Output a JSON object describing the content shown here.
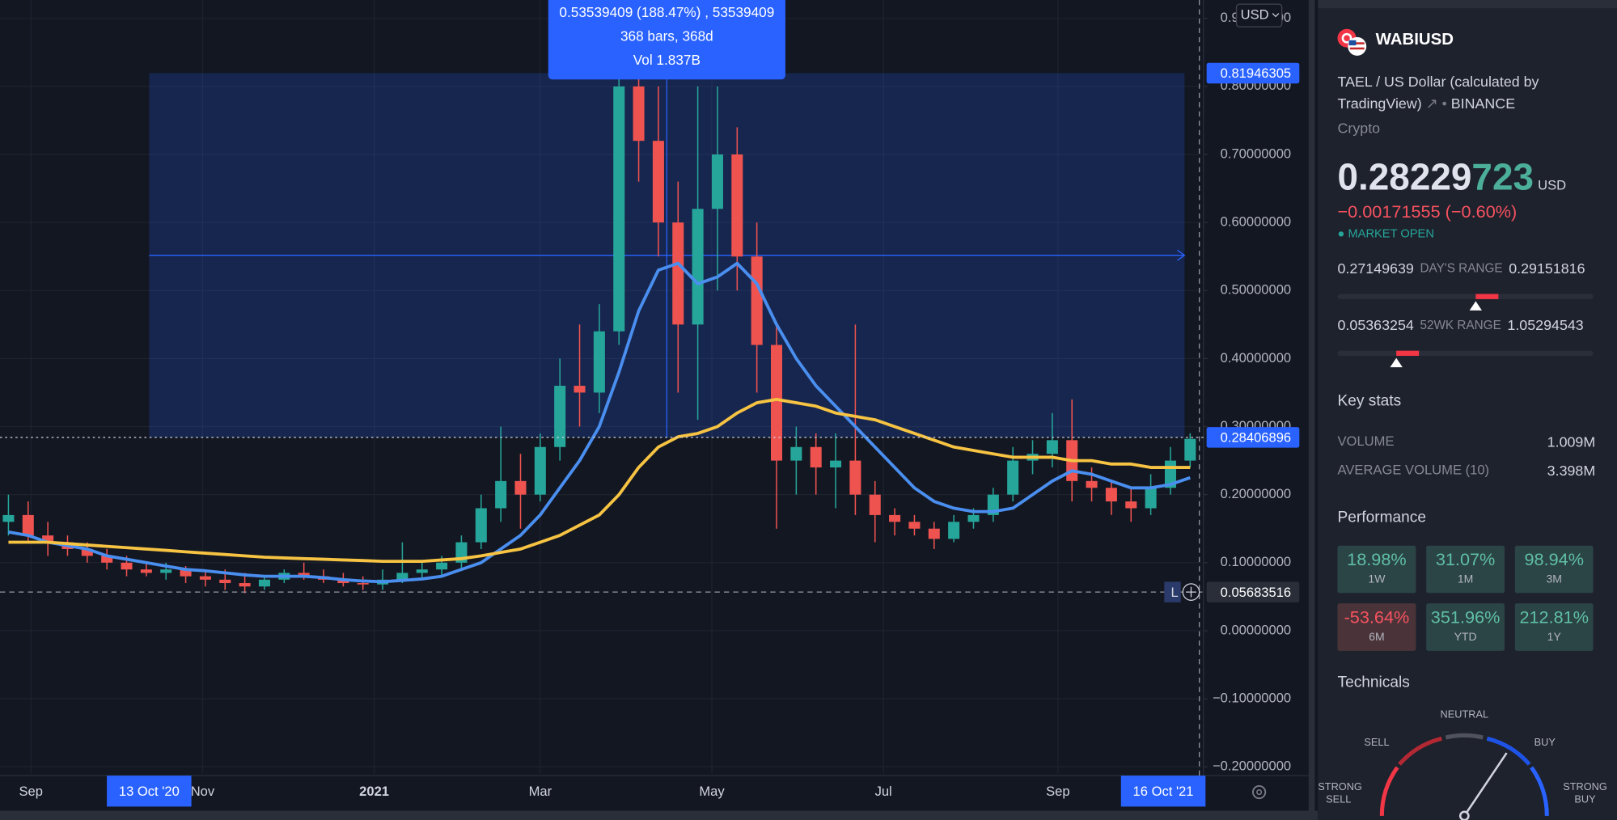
{
  "chart_data": {
    "type": "candlestick",
    "x": [
      "2020-08-24",
      "2020-08-31",
      "2020-09-07",
      "2020-09-14",
      "2020-09-21",
      "2020-09-28",
      "2020-10-05",
      "2020-10-12",
      "2020-10-19",
      "2020-10-26",
      "2020-11-02",
      "2020-11-09",
      "2020-11-16",
      "2020-11-23",
      "2020-11-30",
      "2020-12-07",
      "2020-12-14",
      "2020-12-21",
      "2020-12-28",
      "2021-01-04",
      "2021-01-11",
      "2021-01-18",
      "2021-01-25",
      "2021-02-01",
      "2021-02-08",
      "2021-02-15",
      "2021-02-22",
      "2021-03-01",
      "2021-03-08",
      "2021-03-15",
      "2021-03-22",
      "2021-03-29",
      "2021-04-05",
      "2021-04-12",
      "2021-04-19",
      "2021-04-26",
      "2021-05-03",
      "2021-05-10",
      "2021-05-17",
      "2021-05-24",
      "2021-05-31",
      "2021-06-07",
      "2021-06-14",
      "2021-06-21",
      "2021-06-28",
      "2021-07-05",
      "2021-07-12",
      "2021-07-19",
      "2021-07-26",
      "2021-08-02",
      "2021-08-09",
      "2021-08-16",
      "2021-08-23",
      "2021-08-30",
      "2021-09-06",
      "2021-09-13",
      "2021-09-20",
      "2021-09-27",
      "2021-10-04",
      "2021-10-11",
      "2021-10-18"
    ],
    "open": [
      0.16,
      0.17,
      0.14,
      0.13,
      0.12,
      0.11,
      0.1,
      0.09,
      0.085,
      0.09,
      0.08,
      0.075,
      0.07,
      0.065,
      0.075,
      0.085,
      0.08,
      0.075,
      0.07,
      0.068,
      0.075,
      0.085,
      0.09,
      0.1,
      0.13,
      0.18,
      0.22,
      0.2,
      0.27,
      0.36,
      0.35,
      0.44,
      0.8,
      0.72,
      0.6,
      0.45,
      0.62,
      0.7,
      0.55,
      0.42,
      0.25,
      0.27,
      0.24,
      0.25,
      0.2,
      0.17,
      0.16,
      0.15,
      0.135,
      0.16,
      0.17,
      0.2,
      0.25,
      0.26,
      0.28,
      0.22,
      0.21,
      0.19,
      0.18,
      0.21,
      0.25
    ],
    "high": [
      0.2,
      0.19,
      0.16,
      0.14,
      0.13,
      0.12,
      0.11,
      0.1,
      0.1,
      0.095,
      0.09,
      0.09,
      0.085,
      0.08,
      0.09,
      0.1,
      0.09,
      0.085,
      0.08,
      0.09,
      0.13,
      0.1,
      0.11,
      0.14,
      0.2,
      0.3,
      0.26,
      0.29,
      0.4,
      0.45,
      0.48,
      0.92,
      0.92,
      0.8,
      0.66,
      0.8,
      0.8,
      0.74,
      0.6,
      0.45,
      0.3,
      0.29,
      0.29,
      0.45,
      0.22,
      0.18,
      0.17,
      0.16,
      0.17,
      0.18,
      0.21,
      0.27,
      0.28,
      0.32,
      0.34,
      0.24,
      0.22,
      0.21,
      0.23,
      0.27,
      0.29
    ],
    "low": [
      0.14,
      0.13,
      0.11,
      0.11,
      0.1,
      0.09,
      0.08,
      0.08,
      0.075,
      0.07,
      0.065,
      0.06,
      0.055,
      0.06,
      0.07,
      0.075,
      0.07,
      0.065,
      0.06,
      0.06,
      0.07,
      0.075,
      0.08,
      0.09,
      0.12,
      0.16,
      0.15,
      0.19,
      0.25,
      0.3,
      0.32,
      0.42,
      0.66,
      0.55,
      0.35,
      0.31,
      0.5,
      0.5,
      0.35,
      0.15,
      0.2,
      0.2,
      0.18,
      0.17,
      0.13,
      0.14,
      0.14,
      0.12,
      0.13,
      0.15,
      0.16,
      0.19,
      0.23,
      0.24,
      0.19,
      0.19,
      0.17,
      0.16,
      0.17,
      0.2,
      0.24
    ],
    "close": [
      0.17,
      0.14,
      0.13,
      0.12,
      0.11,
      0.1,
      0.09,
      0.085,
      0.09,
      0.08,
      0.075,
      0.07,
      0.065,
      0.075,
      0.085,
      0.08,
      0.075,
      0.07,
      0.068,
      0.075,
      0.085,
      0.09,
      0.1,
      0.13,
      0.18,
      0.22,
      0.2,
      0.27,
      0.36,
      0.35,
      0.44,
      0.8,
      0.72,
      0.6,
      0.45,
      0.62,
      0.7,
      0.55,
      0.42,
      0.25,
      0.27,
      0.24,
      0.25,
      0.2,
      0.17,
      0.16,
      0.15,
      0.135,
      0.16,
      0.17,
      0.2,
      0.25,
      0.26,
      0.28,
      0.22,
      0.21,
      0.19,
      0.18,
      0.21,
      0.25,
      0.282
    ],
    "up_color": "#26a69a",
    "down_color": "#ef5350",
    "series": [
      {
        "color": "#4a8ff0",
        "values": [
          0.145,
          0.14,
          0.13,
          0.125,
          0.12,
          0.11,
          0.105,
          0.1,
          0.095,
          0.09,
          0.088,
          0.085,
          0.082,
          0.08,
          0.08,
          0.08,
          0.078,
          0.075,
          0.073,
          0.072,
          0.074,
          0.076,
          0.08,
          0.09,
          0.1,
          0.12,
          0.14,
          0.17,
          0.21,
          0.25,
          0.3,
          0.38,
          0.47,
          0.53,
          0.54,
          0.51,
          0.52,
          0.54,
          0.51,
          0.45,
          0.4,
          0.36,
          0.33,
          0.3,
          0.27,
          0.24,
          0.21,
          0.19,
          0.18,
          0.175,
          0.175,
          0.18,
          0.2,
          0.22,
          0.235,
          0.23,
          0.22,
          0.21,
          0.21,
          0.215,
          0.225
        ]
      },
      {
        "color": "#f6c343",
        "values": [
          0.13,
          0.13,
          0.13,
          0.128,
          0.126,
          0.124,
          0.122,
          0.12,
          0.118,
          0.116,
          0.114,
          0.112,
          0.11,
          0.108,
          0.107,
          0.106,
          0.105,
          0.104,
          0.103,
          0.102,
          0.102,
          0.102,
          0.104,
          0.106,
          0.11,
          0.115,
          0.12,
          0.13,
          0.14,
          0.155,
          0.17,
          0.2,
          0.24,
          0.27,
          0.285,
          0.29,
          0.3,
          0.32,
          0.335,
          0.34,
          0.335,
          0.33,
          0.32,
          0.315,
          0.31,
          0.3,
          0.29,
          0.28,
          0.27,
          0.265,
          0.26,
          0.255,
          0.255,
          0.255,
          0.25,
          0.25,
          0.245,
          0.245,
          0.24,
          0.24,
          0.24
        ]
      }
    ],
    "xlim": [
      "2020-08-21",
      "2021-10-22"
    ],
    "xticks": [
      {
        "value": "2020-09-01",
        "label": "Sep"
      },
      {
        "value": "2020-11-01",
        "label": "Nov"
      },
      {
        "value": "2021-01-01",
        "label": "2021"
      },
      {
        "value": "2021-03-01",
        "label": "Mar"
      },
      {
        "value": "2021-05-01",
        "label": "May"
      },
      {
        "value": "2021-07-01",
        "label": "Jul"
      },
      {
        "value": "2021-09-01",
        "label": "Sep"
      }
    ],
    "ylim": [
      -0.21,
      0.927
    ],
    "yticks": [
      {
        "value": 0.9,
        "label": "0.90000000"
      },
      {
        "value": 0.8,
        "label": "0.80000000"
      },
      {
        "value": 0.7,
        "label": "0.70000000"
      },
      {
        "value": 0.6,
        "label": "0.60000000"
      },
      {
        "value": 0.5,
        "label": "0.50000000"
      },
      {
        "value": 0.4,
        "label": "0.40000000"
      },
      {
        "value": 0.3,
        "label": "0.30000000"
      },
      {
        "value": 0.2,
        "label": "0.20000000"
      },
      {
        "value": 0.1,
        "label": "0.10000000"
      },
      {
        "value": 0,
        "label": "0.00000000"
      },
      {
        "value": -0.1,
        "label": "−0.10000000"
      },
      {
        "value": -0.2,
        "label": "−0.20000000"
      }
    ],
    "grid": true,
    "currency_selector": "USD",
    "price_line": 0.28406896,
    "cursor_price": 0.05683516,
    "cursor_tag": "L",
    "measure": {
      "from": {
        "value": "2020-10-13",
        "label": "13 Oct '20"
      },
      "to": {
        "value": "2021-10-16",
        "label": "16 Oct '21"
      },
      "low": 0.28406896,
      "high": 0.81946305,
      "lines": [
        "0.53539409 (188.47%) , 53539409",
        "368 bars, 368d",
        "Vol 1.837B"
      ]
    }
  },
  "sidebar": {
    "symbol": "WABIUSD",
    "description": "TAEL / US Dollar (calculated by TradingView)",
    "exchange": "BINANCE",
    "category": "Crypto",
    "price": 0.28229723,
    "currency": "USD",
    "change": "−0.00171555 (−0.60%)",
    "status": "MARKET OPEN",
    "day_range": {
      "low": 0.27149639,
      "label": "DAY'S RANGE",
      "high": 0.29151816
    },
    "week52_range": {
      "low": 0.05363254,
      "label": "52WK RANGE",
      "high": 1.05294543
    },
    "key_stats": {
      "title": "Key stats",
      "rows": [
        {
          "label": "VOLUME",
          "value": "1.009M"
        },
        {
          "label": "AVERAGE VOLUME (10)",
          "value": "3.398M"
        }
      ]
    },
    "performance": {
      "title": "Performance",
      "tiles": [
        {
          "value": 18.98,
          "label": "18.98%",
          "period": "1W"
        },
        {
          "value": 31.07,
          "label": "31.07%",
          "period": "1M"
        },
        {
          "value": 98.94,
          "label": "98.94%",
          "period": "3M"
        },
        {
          "value": -53.64,
          "label": "-53.64%",
          "period": "6M"
        },
        {
          "value": 351.96,
          "label": "351.96%",
          "period": "YTD"
        },
        {
          "value": 212.81,
          "label": "212.81%",
          "period": "1Y"
        }
      ]
    },
    "technicals": {
      "title": "Technicals",
      "labels": [
        "STRONG SELL",
        "SELL",
        "NEUTRAL",
        "BUY",
        "STRONG BUY"
      ]
    }
  }
}
